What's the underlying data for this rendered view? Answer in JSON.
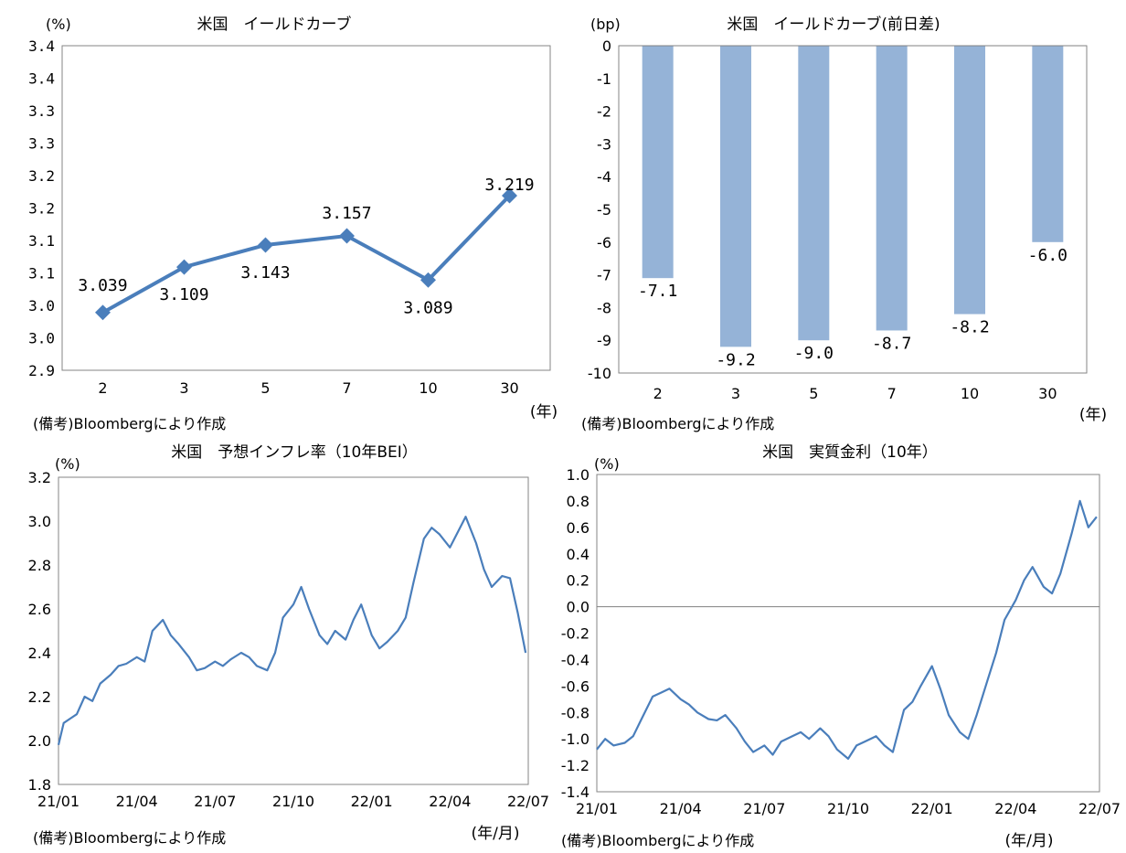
{
  "page": {
    "panels": [
      {
        "note": "(備考)Bloombergにより作成",
        "unit_y": "(%)",
        "unit_x": "(年)"
      },
      {
        "note": "(備考)Bloombergにより作成",
        "unit_y": "(bp)",
        "unit_x": "(年)"
      },
      {
        "note": "(備考)Bloombergにより作成",
        "unit_y": "(%)",
        "unit_x": "(年/月)"
      },
      {
        "note": "(備考)Bloombergにより作成",
        "unit_y": "(%)",
        "unit_x": "(年/月)"
      }
    ]
  },
  "chart_data": [
    {
      "type": "line",
      "title": "米国　イールドカーブ",
      "xlabel": "(年)",
      "ylabel": "(%)",
      "categories": [
        "2",
        "3",
        "5",
        "7",
        "10",
        "30"
      ],
      "values": [
        3.039,
        3.109,
        3.143,
        3.157,
        3.089,
        3.219
      ],
      "data_labels": [
        "3.039",
        "3.109",
        "3.143",
        "3.157",
        "3.089",
        "3.219"
      ],
      "ylim": [
        2.95,
        3.45
      ],
      "y_ticks": [
        2.95,
        3.0,
        3.05,
        3.1,
        3.15,
        3.2,
        3.25,
        3.3,
        3.35,
        3.4,
        3.45
      ],
      "y_tick_labels": [
        "2.9",
        "3.0",
        "3.0",
        "3.1",
        "3.1",
        "3.2",
        "3.2",
        "3.3",
        "3.3",
        "3.4",
        "3.4"
      ],
      "color": "#4a7ebb"
    },
    {
      "type": "bar",
      "title": "米国　イールドカーブ(前日差)",
      "xlabel": "(年)",
      "ylabel": "(bp)",
      "categories": [
        "2",
        "3",
        "5",
        "7",
        "10",
        "30"
      ],
      "values": [
        -7.1,
        -9.2,
        -9.0,
        -8.7,
        -8.2,
        -6.0
      ],
      "data_labels": [
        "-7.1",
        "-9.2",
        "-9.0",
        "-8.7",
        "-8.2",
        "-6.0"
      ],
      "ylim": [
        -10,
        0
      ],
      "y_ticks": [
        0,
        -1,
        -2,
        -3,
        -4,
        -5,
        -6,
        -7,
        -8,
        -9,
        -10
      ],
      "y_tick_labels": [
        "0",
        "-1",
        "-2",
        "-3",
        "-4",
        "-5",
        "-6",
        "-7",
        "-8",
        "-9",
        "-10"
      ],
      "color": "#95b3d7"
    },
    {
      "type": "line",
      "title": "米国　予想インフレ率（10年BEI）",
      "xlabel": "(年/月)",
      "ylabel": "(%)",
      "x_tick_labels": [
        "21/01",
        "21/04",
        "21/07",
        "21/10",
        "22/01",
        "22/04",
        "22/07"
      ],
      "ylim": [
        1.8,
        3.2
      ],
      "y_ticks": [
        1.8,
        2.0,
        2.2,
        2.4,
        2.6,
        2.8,
        3.0,
        3.2
      ],
      "y_tick_labels": [
        "1.8",
        "2.0",
        "2.2",
        "2.4",
        "2.6",
        "2.8",
        "3.0",
        "3.2"
      ],
      "series_name": "10年BEI",
      "color": "#4a7ebb",
      "x": [
        0,
        0.2,
        0.45,
        0.7,
        1.0,
        1.3,
        1.6,
        2.0,
        2.3,
        2.6,
        3.0,
        3.3,
        3.6,
        4.0,
        4.3,
        4.6,
        5.0,
        5.3,
        5.6,
        6.0,
        6.3,
        6.6,
        7.0,
        7.3,
        7.6,
        8.0,
        8.3,
        8.6,
        9.0,
        9.3,
        9.6,
        10.0,
        10.3,
        10.6,
        11.0,
        11.3,
        11.6,
        12.0,
        12.3,
        12.6,
        13.0,
        13.3,
        13.6,
        14.0,
        14.3,
        14.6,
        15.0,
        15.3,
        15.6,
        16.0,
        16.3,
        16.6,
        17.0,
        17.3,
        17.6,
        17.9
      ],
      "values": [
        1.98,
        2.08,
        2.1,
        2.12,
        2.2,
        2.18,
        2.26,
        2.3,
        2.34,
        2.35,
        2.38,
        2.36,
        2.5,
        2.55,
        2.48,
        2.44,
        2.38,
        2.32,
        2.33,
        2.36,
        2.34,
        2.37,
        2.4,
        2.38,
        2.34,
        2.32,
        2.4,
        2.56,
        2.62,
        2.7,
        2.6,
        2.48,
        2.44,
        2.5,
        2.46,
        2.55,
        2.62,
        2.48,
        2.42,
        2.45,
        2.5,
        2.56,
        2.72,
        2.92,
        2.97,
        2.94,
        2.88,
        2.95,
        3.02,
        2.9,
        2.78,
        2.7,
        2.75,
        2.74,
        2.58,
        2.4
      ]
    },
    {
      "type": "line",
      "title": "米国　実質金利（10年）",
      "xlabel": "(年/月)",
      "ylabel": "(%)",
      "x_tick_labels": [
        "21/01",
        "21/04",
        "21/07",
        "21/10",
        "22/01",
        "22/04",
        "22/07"
      ],
      "ylim": [
        -1.4,
        1.0
      ],
      "y_ticks": [
        -1.4,
        -1.2,
        -1.0,
        -0.8,
        -0.6,
        -0.4,
        -0.2,
        0.0,
        0.2,
        0.4,
        0.6,
        0.8,
        1.0
      ],
      "y_tick_labels": [
        "-1.4",
        "-1.2",
        "-1.0",
        "-0.8",
        "-0.6",
        "-0.4",
        "-0.2",
        "0.0",
        "0.2",
        "0.4",
        "0.6",
        "0.8",
        "1.0"
      ],
      "series_name": "実質金利",
      "color": "#4a7ebb",
      "x": [
        0,
        0.3,
        0.6,
        1.0,
        1.3,
        1.6,
        2.0,
        2.3,
        2.6,
        3.0,
        3.3,
        3.6,
        4.0,
        4.3,
        4.6,
        5.0,
        5.3,
        5.6,
        6.0,
        6.3,
        6.6,
        7.0,
        7.3,
        7.6,
        8.0,
        8.3,
        8.6,
        9.0,
        9.3,
        9.6,
        10.0,
        10.3,
        10.6,
        11.0,
        11.3,
        11.6,
        12.0,
        12.3,
        12.6,
        13.0,
        13.3,
        13.6,
        14.0,
        14.3,
        14.6,
        15.0,
        15.3,
        15.6,
        16.0,
        16.3,
        16.6,
        17.0,
        17.3,
        17.6,
        17.9
      ],
      "values": [
        -1.08,
        -1.0,
        -1.05,
        -1.03,
        -0.98,
        -0.85,
        -0.68,
        -0.65,
        -0.62,
        -0.7,
        -0.74,
        -0.8,
        -0.85,
        -0.86,
        -0.82,
        -0.92,
        -1.02,
        -1.1,
        -1.05,
        -1.12,
        -1.02,
        -0.98,
        -0.95,
        -1.0,
        -0.92,
        -0.98,
        -1.08,
        -1.15,
        -1.05,
        -1.02,
        -0.98,
        -1.05,
        -1.1,
        -0.78,
        -0.72,
        -0.6,
        -0.45,
        -0.62,
        -0.82,
        -0.95,
        -1.0,
        -0.82,
        -0.55,
        -0.35,
        -0.1,
        0.05,
        0.2,
        0.3,
        0.15,
        0.1,
        0.25,
        0.55,
        0.8,
        0.6,
        0.68
      ]
    }
  ]
}
